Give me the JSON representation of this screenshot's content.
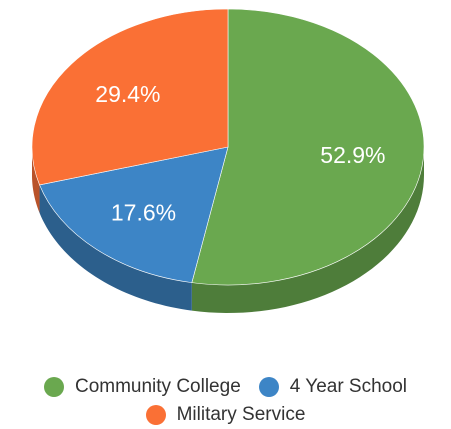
{
  "chart_data": {
    "type": "pie",
    "style": "3d",
    "slices": [
      {
        "name": "Community College",
        "value": 52.9,
        "label": "52.9%",
        "color": "#6aa84f",
        "side_color": "#4e7d3a"
      },
      {
        "name": "4 Year School",
        "value": 17.6,
        "label": "17.6%",
        "color": "#3d85c6",
        "side_color": "#2c5f8c"
      },
      {
        "name": "Military Service",
        "value": 29.4,
        "label": "29.4%",
        "color": "#fa7035",
        "side_color": "#b9532a"
      }
    ],
    "legend_position": "bottom",
    "start_angle": "top, clockwise"
  }
}
